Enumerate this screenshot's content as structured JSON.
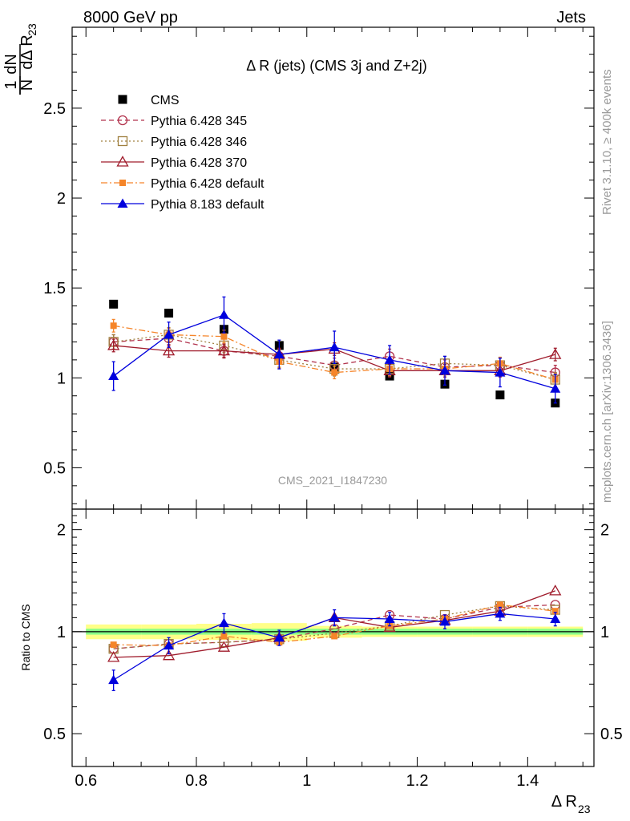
{
  "header": {
    "left": "8000 GeV pp",
    "right": "Jets"
  },
  "side_labels": {
    "rivet": "Rivet 3.1.10, ≥ 400k events",
    "mcplots": "mcplots.cern.ch [arXiv:1306.3436]"
  },
  "watermark": "CMS_2021_I1847230",
  "ylabel_main": {
    "frac_num": "1",
    "frac_den": "N",
    "dN": "dN",
    "dDR": "dΔ R",
    "sub": "23"
  },
  "ylabel_ratio": "Ratio to CMS",
  "xlabel": {
    "main": "Δ R",
    "sub": "23"
  },
  "colors": {
    "cms": "#000000",
    "p345": "#b2334d",
    "p346": "#a08040",
    "p370": "#a01c2c",
    "p6def": "#f5852a",
    "p8def": "#0000dd",
    "band_outer": "#ffff88",
    "band_inner": "#88ff88"
  },
  "chart_data": [
    {
      "type": "scatter",
      "panel": "main",
      "title": "Δ R (jets) (CMS 3j and Z+2j)",
      "xlim": [
        0.575,
        1.52
      ],
      "ylim": [
        0.27,
        2.95
      ],
      "yticks": [
        0.5,
        1,
        1.5,
        2,
        2.5
      ],
      "ytick_labels": [
        "0.5",
        "1",
        "1.5",
        "2",
        "2.5"
      ],
      "x": [
        0.65,
        0.75,
        0.85,
        0.95,
        1.05,
        1.15,
        1.25,
        1.35,
        1.45
      ],
      "series": [
        {
          "name": "CMS",
          "key": "cms",
          "marker": "square-filled",
          "line": "none",
          "values": [
            1.41,
            1.36,
            1.27,
            1.18,
            1.06,
            1.01,
            0.965,
            0.905,
            0.86
          ],
          "errors": [
            0.01,
            0.01,
            0.01,
            0.01,
            0.01,
            0.01,
            0.01,
            0.01,
            0.01
          ]
        },
        {
          "name": "Pythia 6.428 345",
          "key": "p345",
          "marker": "circle-open",
          "line": "dashed",
          "values": [
            1.2,
            1.22,
            1.15,
            1.12,
            1.07,
            1.12,
            1.06,
            1.07,
            1.03
          ],
          "errors": [
            0.04,
            0.04,
            0.04,
            0.04,
            0.04,
            0.04,
            0.04,
            0.04,
            0.04
          ]
        },
        {
          "name": "Pythia 6.428 346",
          "key": "p346",
          "marker": "square-open",
          "line": "dotted",
          "values": [
            1.2,
            1.24,
            1.18,
            1.1,
            1.05,
            1.05,
            1.08,
            1.07,
            0.99
          ],
          "errors": [
            0.04,
            0.04,
            0.04,
            0.04,
            0.04,
            0.04,
            0.04,
            0.04,
            0.04
          ]
        },
        {
          "name": "Pythia 6.428 370",
          "key": "p370",
          "marker": "triangle-open",
          "line": "solid",
          "values": [
            1.18,
            1.15,
            1.15,
            1.13,
            1.16,
            1.04,
            1.04,
            1.04,
            1.13
          ],
          "errors": [
            0.035,
            0.035,
            0.035,
            0.035,
            0.035,
            0.035,
            0.035,
            0.035,
            0.035
          ]
        },
        {
          "name": "Pythia 6.428 default",
          "key": "p6def",
          "marker": "square-small",
          "line": "dashdot",
          "values": [
            1.29,
            1.24,
            1.23,
            1.09,
            1.03,
            1.05,
            1.05,
            1.08,
            0.99
          ],
          "errors": [
            0.035,
            0.035,
            0.035,
            0.035,
            0.035,
            0.035,
            0.035,
            0.035,
            0.035
          ]
        },
        {
          "name": "Pythia 8.183 default",
          "key": "p8def",
          "marker": "triangle-filled",
          "line": "solid",
          "values": [
            1.01,
            1.24,
            1.35,
            1.13,
            1.17,
            1.1,
            1.04,
            1.03,
            0.94
          ],
          "errors": [
            0.08,
            0.07,
            0.1,
            0.08,
            0.09,
            0.08,
            0.08,
            0.08,
            0.08
          ]
        }
      ]
    },
    {
      "type": "scatter",
      "panel": "ratio",
      "xlim": [
        0.575,
        1.52
      ],
      "ylim": [
        0.4,
        2.3
      ],
      "yticks": [
        0.5,
        1,
        2
      ],
      "ytick_labels": [
        "0.5",
        "1",
        "2"
      ],
      "xticks": [
        0.6,
        0.8,
        1.0,
        1.2,
        1.4
      ],
      "xtick_labels": [
        "0.6",
        "0.8",
        "1",
        "1.2",
        "1.4"
      ],
      "x": [
        0.65,
        0.75,
        0.85,
        0.95,
        1.05,
        1.15,
        1.25,
        1.35,
        1.45
      ],
      "band": {
        "outer": [
          0.05,
          0.05,
          0.055,
          0.06,
          0.04,
          0.035,
          0.035,
          0.035,
          0.035
        ],
        "inner": [
          0.02,
          0.02,
          0.02,
          0.02,
          0.02,
          0.02,
          0.02,
          0.02,
          0.02
        ]
      },
      "series": [
        {
          "name": "Pythia 6.428 345",
          "key": "p345",
          "marker": "circle-open",
          "line": "dashed",
          "values": [
            0.89,
            0.92,
            0.93,
            0.95,
            1.02,
            1.12,
            1.09,
            1.18,
            1.2
          ]
        },
        {
          "name": "Pythia 6.428 346",
          "key": "p346",
          "marker": "square-open",
          "line": "dotted",
          "values": [
            0.89,
            0.92,
            0.93,
            0.95,
            0.99,
            1.04,
            1.12,
            1.19,
            1.16
          ]
        },
        {
          "name": "Pythia 6.428 370",
          "key": "p370",
          "marker": "triangle-open",
          "line": "solid",
          "values": [
            0.84,
            0.85,
            0.9,
            0.96,
            1.1,
            1.03,
            1.08,
            1.15,
            1.32
          ]
        },
        {
          "name": "Pythia 6.428 default",
          "key": "p6def",
          "marker": "square-small",
          "line": "dashdot",
          "values": [
            0.915,
            0.91,
            0.97,
            0.93,
            0.97,
            1.04,
            1.09,
            1.2,
            1.15
          ]
        },
        {
          "name": "Pythia 8.183 default",
          "key": "p8def",
          "marker": "triangle-filled",
          "line": "solid",
          "values": [
            0.72,
            0.91,
            1.06,
            0.96,
            1.1,
            1.09,
            1.07,
            1.13,
            1.09
          ],
          "errors": [
            0.05,
            0.05,
            0.07,
            0.05,
            0.06,
            0.05,
            0.05,
            0.05,
            0.05
          ]
        }
      ]
    }
  ]
}
